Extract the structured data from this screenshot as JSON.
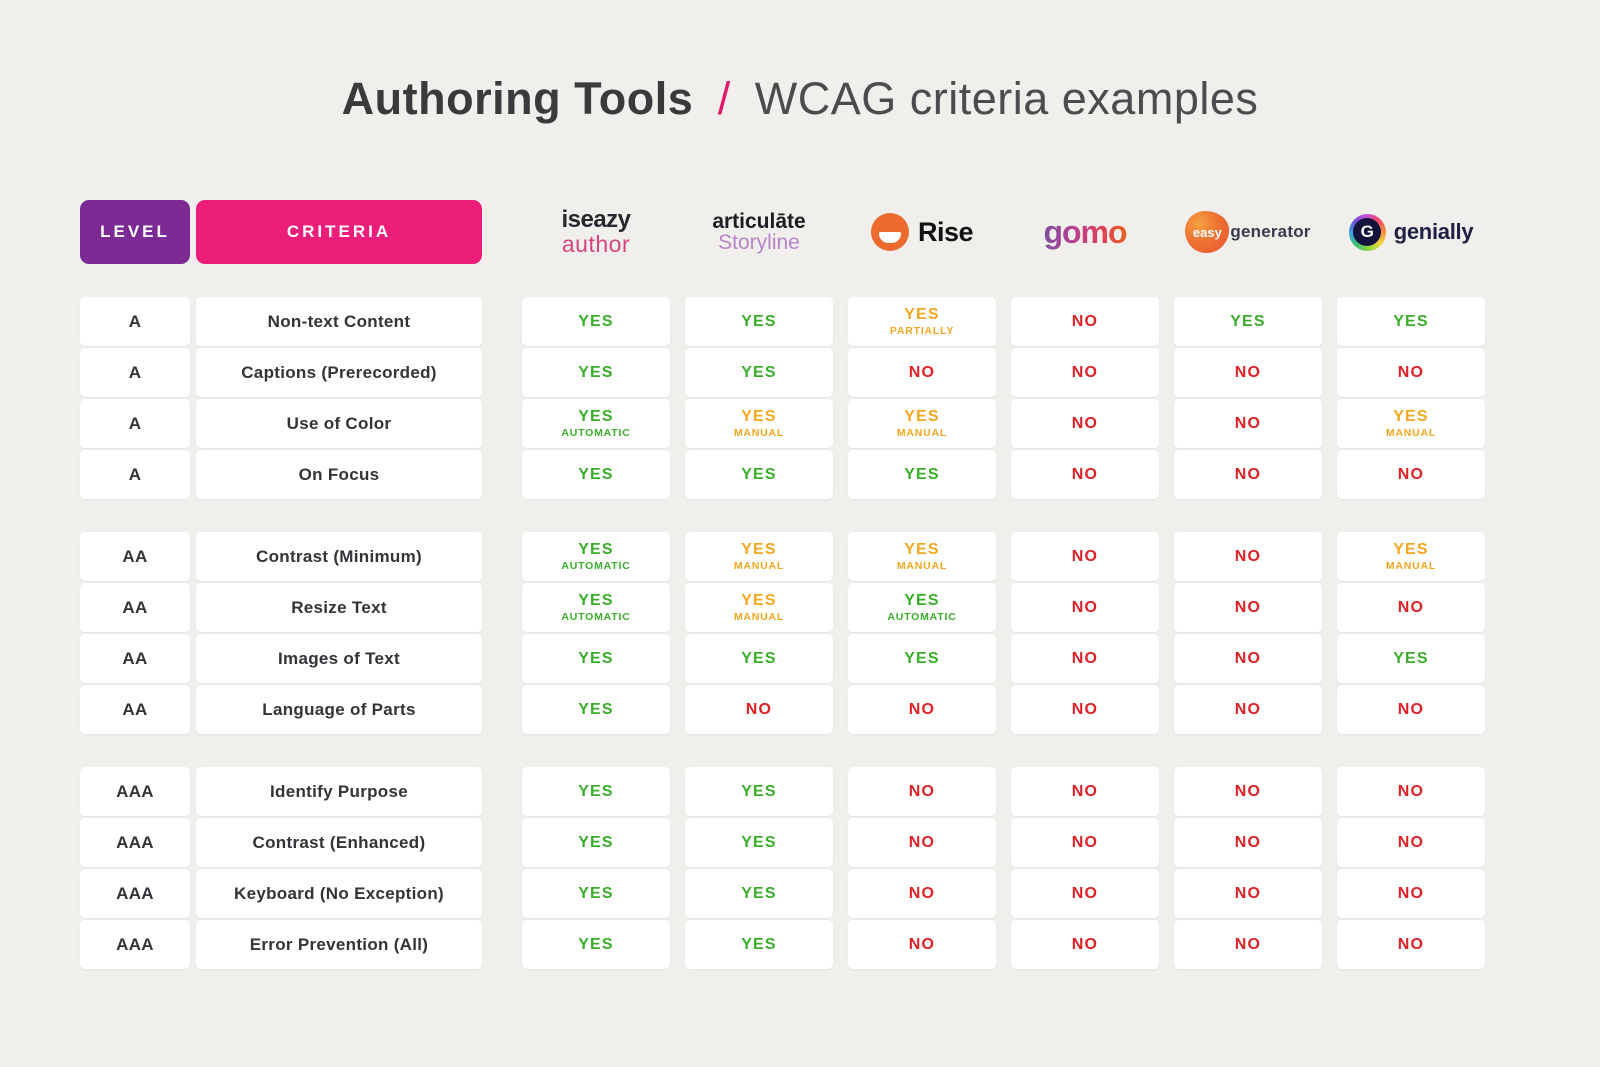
{
  "title": {
    "bold": "Authoring Tools",
    "slash": "/",
    "rest": "WCAG criteria examples"
  },
  "header": {
    "level_label": "LEVEL",
    "criteria_label": "CRITERIA"
  },
  "tools": [
    {
      "id": "iseazy-author",
      "line1": "iseazy",
      "line2": "author"
    },
    {
      "id": "articulate-storyline",
      "line1": "articulāte",
      "line2": "Storyline"
    },
    {
      "id": "rise",
      "text": "Rise"
    },
    {
      "id": "gomo",
      "text": "gomo"
    },
    {
      "id": "easygenerator",
      "blob_text": "easy",
      "text": "generator"
    },
    {
      "id": "genially",
      "letter": "G",
      "text": "genially"
    }
  ],
  "palette": {
    "green": "#39AE29",
    "orange": "#F2A71F",
    "red": "#DF2025",
    "purple": "#7B2B93",
    "hot_pink": "#EC1E79",
    "title_pink": "#E0176B"
  },
  "groups": [
    {
      "level": "A",
      "rows": [
        {
          "criteria": "Non-text Content",
          "cells": [
            {
              "text": "YES",
              "sub": "",
              "tone": "green"
            },
            {
              "text": "YES",
              "sub": "",
              "tone": "green"
            },
            {
              "text": "YES",
              "sub": "PARTIALLY",
              "tone": "orange"
            },
            {
              "text": "NO",
              "sub": "",
              "tone": "red"
            },
            {
              "text": "YES",
              "sub": "",
              "tone": "green"
            },
            {
              "text": "YES",
              "sub": "",
              "tone": "green"
            }
          ]
        },
        {
          "criteria": "Captions (Prerecorded)",
          "cells": [
            {
              "text": "YES",
              "sub": "",
              "tone": "green"
            },
            {
              "text": "YES",
              "sub": "",
              "tone": "green"
            },
            {
              "text": "NO",
              "sub": "",
              "tone": "red"
            },
            {
              "text": "NO",
              "sub": "",
              "tone": "red"
            },
            {
              "text": "NO",
              "sub": "",
              "tone": "red"
            },
            {
              "text": "NO",
              "sub": "",
              "tone": "red"
            }
          ]
        },
        {
          "criteria": "Use of Color",
          "cells": [
            {
              "text": "YES",
              "sub": "AUTOMATIC",
              "tone": "green"
            },
            {
              "text": "YES",
              "sub": "MANUAL",
              "tone": "orange"
            },
            {
              "text": "YES",
              "sub": "MANUAL",
              "tone": "orange"
            },
            {
              "text": "NO",
              "sub": "",
              "tone": "red"
            },
            {
              "text": "NO",
              "sub": "",
              "tone": "red"
            },
            {
              "text": "YES",
              "sub": "MANUAL",
              "tone": "orange"
            }
          ]
        },
        {
          "criteria": "On Focus",
          "cells": [
            {
              "text": "YES",
              "sub": "",
              "tone": "green"
            },
            {
              "text": "YES",
              "sub": "",
              "tone": "green"
            },
            {
              "text": "YES",
              "sub": "",
              "tone": "green"
            },
            {
              "text": "NO",
              "sub": "",
              "tone": "red"
            },
            {
              "text": "NO",
              "sub": "",
              "tone": "red"
            },
            {
              "text": "NO",
              "sub": "",
              "tone": "red"
            }
          ]
        }
      ]
    },
    {
      "level": "AA",
      "rows": [
        {
          "criteria": "Contrast (Minimum)",
          "cells": [
            {
              "text": "YES",
              "sub": "AUTOMATIC",
              "tone": "green"
            },
            {
              "text": "YES",
              "sub": "MANUAL",
              "tone": "orange"
            },
            {
              "text": "YES",
              "sub": "MANUAL",
              "tone": "orange"
            },
            {
              "text": "NO",
              "sub": "",
              "tone": "red"
            },
            {
              "text": "NO",
              "sub": "",
              "tone": "red"
            },
            {
              "text": "YES",
              "sub": "MANUAL",
              "tone": "orange"
            }
          ]
        },
        {
          "criteria": "Resize Text",
          "cells": [
            {
              "text": "YES",
              "sub": "AUTOMATIC",
              "tone": "green"
            },
            {
              "text": "YES",
              "sub": "MANUAL",
              "tone": "orange"
            },
            {
              "text": "YES",
              "sub": "AUTOMATIC",
              "tone": "green"
            },
            {
              "text": "NO",
              "sub": "",
              "tone": "red"
            },
            {
              "text": "NO",
              "sub": "",
              "tone": "red"
            },
            {
              "text": "NO",
              "sub": "",
              "tone": "red"
            }
          ]
        },
        {
          "criteria": "Images of Text",
          "cells": [
            {
              "text": "YES",
              "sub": "",
              "tone": "green"
            },
            {
              "text": "YES",
              "sub": "",
              "tone": "green"
            },
            {
              "text": "YES",
              "sub": "",
              "tone": "green"
            },
            {
              "text": "NO",
              "sub": "",
              "tone": "red"
            },
            {
              "text": "NO",
              "sub": "",
              "tone": "red"
            },
            {
              "text": "YES",
              "sub": "",
              "tone": "green"
            }
          ]
        },
        {
          "criteria": "Language of Parts",
          "cells": [
            {
              "text": "YES",
              "sub": "",
              "tone": "green"
            },
            {
              "text": "NO",
              "sub": "",
              "tone": "red"
            },
            {
              "text": "NO",
              "sub": "",
              "tone": "red"
            },
            {
              "text": "NO",
              "sub": "",
              "tone": "red"
            },
            {
              "text": "NO",
              "sub": "",
              "tone": "red"
            },
            {
              "text": "NO",
              "sub": "",
              "tone": "red"
            }
          ]
        }
      ]
    },
    {
      "level": "AAA",
      "rows": [
        {
          "criteria": "Identify Purpose",
          "cells": [
            {
              "text": "YES",
              "sub": "",
              "tone": "green"
            },
            {
              "text": "YES",
              "sub": "",
              "tone": "green"
            },
            {
              "text": "NO",
              "sub": "",
              "tone": "red"
            },
            {
              "text": "NO",
              "sub": "",
              "tone": "red"
            },
            {
              "text": "NO",
              "sub": "",
              "tone": "red"
            },
            {
              "text": "NO",
              "sub": "",
              "tone": "red"
            }
          ]
        },
        {
          "criteria": "Contrast (Enhanced)",
          "cells": [
            {
              "text": "YES",
              "sub": "",
              "tone": "green"
            },
            {
              "text": "YES",
              "sub": "",
              "tone": "green"
            },
            {
              "text": "NO",
              "sub": "",
              "tone": "red"
            },
            {
              "text": "NO",
              "sub": "",
              "tone": "red"
            },
            {
              "text": "NO",
              "sub": "",
              "tone": "red"
            },
            {
              "text": "NO",
              "sub": "",
              "tone": "red"
            }
          ]
        },
        {
          "criteria": "Keyboard (No Exception)",
          "cells": [
            {
              "text": "YES",
              "sub": "",
              "tone": "green"
            },
            {
              "text": "YES",
              "sub": "",
              "tone": "green"
            },
            {
              "text": "NO",
              "sub": "",
              "tone": "red"
            },
            {
              "text": "NO",
              "sub": "",
              "tone": "red"
            },
            {
              "text": "NO",
              "sub": "",
              "tone": "red"
            },
            {
              "text": "NO",
              "sub": "",
              "tone": "red"
            }
          ]
        },
        {
          "criteria": "Error Prevention (All)",
          "cells": [
            {
              "text": "YES",
              "sub": "",
              "tone": "green"
            },
            {
              "text": "YES",
              "sub": "",
              "tone": "green"
            },
            {
              "text": "NO",
              "sub": "",
              "tone": "red"
            },
            {
              "text": "NO",
              "sub": "",
              "tone": "red"
            },
            {
              "text": "NO",
              "sub": "",
              "tone": "red"
            },
            {
              "text": "NO",
              "sub": "",
              "tone": "red"
            }
          ]
        }
      ]
    }
  ]
}
